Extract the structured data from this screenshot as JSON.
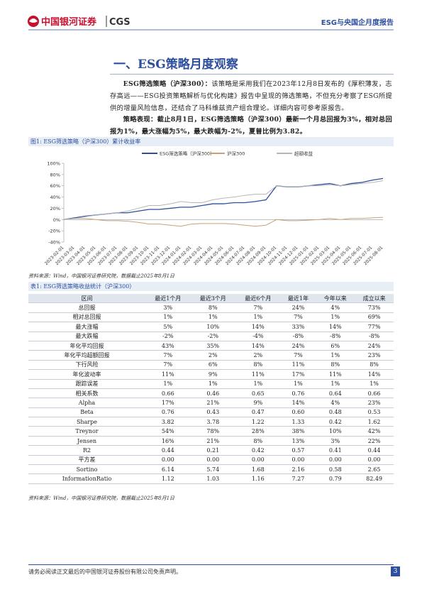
{
  "header": {
    "logo_cn": "中国银河证券",
    "logo_en": "CGS",
    "report": "ESG与央国企月度报告"
  },
  "section": {
    "title": "一、ESG策略月度观察"
  },
  "paragraphs": [
    {
      "lead": "ESG筛选策略（沪深300）：",
      "text": "该策略是采用我们在2023年12月8日发布的《厚积薄发，志存高远——ESG投资策略解析与优化构建》报告中呈现的筛选策略，不但充分考察了ESG所提供的增量风险信息，还结合了马科维兹资产组合理论。详细内容可参考原报告。"
    },
    {
      "lead": "策略表现：",
      "text": "截止8月1日，ESG筛选策略（沪深300）最新一个月总回报为3%，相对总回报为1%，最大涨幅为5%，最大跌幅为-2%，夏普比例为3.82。"
    }
  ],
  "figure": {
    "caption": "图1: ESG筛选策略（沪深300）累计收益率",
    "chart_data": {
      "type": "line",
      "categories": [
        "2023-02-01",
        "2023-03-01",
        "2023-04-01",
        "2023-05-01",
        "2023-06-01",
        "2023-07-01",
        "2023-08-01",
        "2023-09-01",
        "2023-10-01",
        "2023-11-01",
        "2023-12-01",
        "2024-01-01",
        "2024-02-01",
        "2024-03-01",
        "2024-04-01",
        "2024-05-01",
        "2024-06-01",
        "2024-07-01",
        "2024-08-01",
        "2024-09-01",
        "2024-10-01",
        "2024-11-01",
        "2024-12-01",
        "2025-01-01",
        "2025-02-01",
        "2025-03-01",
        "2025-04-01",
        "2025-05-01",
        "2025-06-01",
        "2025-07-01",
        "2025-08-01"
      ],
      "series": [
        {
          "name": "ESG筛选策略（沪深300）",
          "color": "#2e4f9e",
          "values": [
            0,
            3,
            6,
            8,
            10,
            12,
            12,
            15,
            18,
            18,
            20,
            22,
            22,
            25,
            28,
            28,
            30,
            30,
            32,
            35,
            60,
            58,
            58,
            60,
            62,
            64,
            60,
            64,
            66,
            70,
            73
          ]
        },
        {
          "name": "沪深300",
          "color": "#c9a27a",
          "values": [
            0,
            2,
            2,
            0,
            -2,
            -2,
            -3,
            -5,
            -8,
            -8,
            -10,
            -12,
            -8,
            -7,
            -7,
            -7,
            -8,
            -10,
            -12,
            -10,
            0,
            -2,
            -2,
            -1,
            0,
            2,
            0,
            2,
            2,
            3,
            4
          ]
        },
        {
          "name": "超额收益",
          "color": "#b5b5b5",
          "values": [
            0,
            2,
            5,
            8,
            10,
            12,
            15,
            20,
            25,
            25,
            28,
            32,
            30,
            30,
            35,
            38,
            40,
            43,
            45,
            45,
            60,
            58,
            58,
            60,
            60,
            62,
            60,
            62,
            64,
            66,
            69
          ]
        }
      ],
      "ylim": [
        -40,
        100
      ],
      "yticks": [
        {
          "value": -40,
          "label": "-40%"
        },
        {
          "value": -20,
          "label": "-20%"
        },
        {
          "value": 0,
          "label": "0%"
        },
        {
          "value": 20,
          "label": "20%"
        },
        {
          "value": 40,
          "label": "40%"
        },
        {
          "value": 60,
          "label": "60%"
        },
        {
          "value": 80,
          "label": "80%"
        },
        {
          "value": 100,
          "label": "100%"
        }
      ]
    },
    "source": "资料来源：Wind，中国银河证券研究院，数据截止2025年8月1日"
  },
  "table": {
    "caption": "表1: ESG筛选策略收益统计（沪深300）",
    "header": [
      "区间",
      "最近1个月",
      "最近3个月",
      "最近6个月",
      "最近1年",
      "今年以来",
      "成立以来"
    ],
    "rows": [
      [
        "总回报",
        "3%",
        "8%",
        "7%",
        "24%",
        "4%",
        "73%"
      ],
      [
        "相对总回报",
        "1%",
        "1%",
        "1%",
        "7%",
        "1%",
        "69%"
      ],
      [
        "最大涨幅",
        "5%",
        "10%",
        "14%",
        "33%",
        "14%",
        "77%"
      ],
      [
        "最大跌幅",
        "-2%",
        "-2%",
        "-4%",
        "-8%",
        "-8%",
        "-8%"
      ],
      [
        "年化平均回报",
        "43%",
        "35%",
        "14%",
        "24%",
        "6%",
        "24%"
      ],
      [
        "年化平均超额回报",
        "7%",
        "2%",
        "2%",
        "7%",
        "1%",
        "23%"
      ],
      [
        "下行风险",
        "7%",
        "6%",
        "8%",
        "11%",
        "8%",
        "8%"
      ],
      [
        "年化波动率",
        "11%",
        "9%",
        "11%",
        "17%",
        "11%",
        "14%"
      ],
      [
        "跟踪误差",
        "1%",
        "1%",
        "1%",
        "1%",
        "1%",
        "1%"
      ],
      [
        "相关系数",
        "0.66",
        "0.46",
        "0.65",
        "0.76",
        "0.64",
        "0.66"
      ],
      [
        "Alpha",
        "17%",
        "21%",
        "9%",
        "14%",
        "4%",
        "23%"
      ],
      [
        "Beta",
        "0.76",
        "0.43",
        "0.47",
        "0.60",
        "0.48",
        "0.53"
      ],
      [
        "Sharpe",
        "3.82",
        "3.78",
        "1.22",
        "1.33",
        "0.42",
        "1.62"
      ],
      [
        "Treynor",
        "54%",
        "78%",
        "28%",
        "38%",
        "10%",
        "42%"
      ],
      [
        "Jensen",
        "16%",
        "21%",
        "8%",
        "13%",
        "3%",
        "22%"
      ],
      [
        "R2",
        "0.44",
        "0.21",
        "0.42",
        "0.57",
        "0.41",
        "0.44"
      ],
      [
        "平方差",
        "0.00",
        "0.00",
        "0.00",
        "0.00",
        "0.00",
        "0.00"
      ],
      [
        "Sortino",
        "6.14",
        "5.74",
        "1.68",
        "2.16",
        "0.58",
        "2.65"
      ],
      [
        "InformationRatio",
        "1.12",
        "1.03",
        "1.16",
        "7.27",
        "0.79",
        "82.49"
      ]
    ],
    "source": "资料来源：Wind，中国银河证券研究院，数据截止2025年8月1日"
  },
  "footer": {
    "disclaimer": "请务必阅读正文最后的中国银河证券股份有限公司免责声明。",
    "page": "3"
  }
}
